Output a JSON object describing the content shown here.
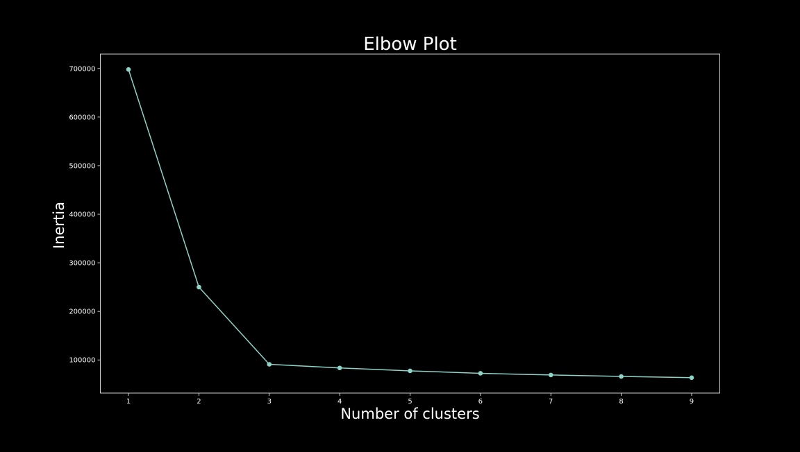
{
  "chart_data": {
    "type": "line",
    "title": "Elbow Plot",
    "xlabel": "Number of clusters",
    "ylabel": "Inertia",
    "x": [
      1,
      2,
      3,
      4,
      5,
      6,
      7,
      8,
      9
    ],
    "series": [
      {
        "values": [
          698000,
          250000,
          91000,
          83500,
          77500,
          72500,
          69000,
          66000,
          63500
        ],
        "marker": "circle"
      }
    ],
    "xticks": [
      "1",
      "2",
      "3",
      "4",
      "5",
      "6",
      "7",
      "8",
      "9"
    ],
    "yticks": [
      "100000",
      "200000",
      "300000",
      "400000",
      "500000",
      "600000",
      "700000"
    ],
    "ytick_values": [
      100000,
      200000,
      300000,
      400000,
      500000,
      600000,
      700000
    ],
    "xlim": [
      0.6,
      9.4
    ],
    "ylim": [
      31775,
      729725
    ],
    "grid": false,
    "legend": "none",
    "colors": {
      "background": "#000000",
      "line": "#8dd3c7",
      "axes": "#ffffff",
      "text": "#ffffff"
    }
  }
}
